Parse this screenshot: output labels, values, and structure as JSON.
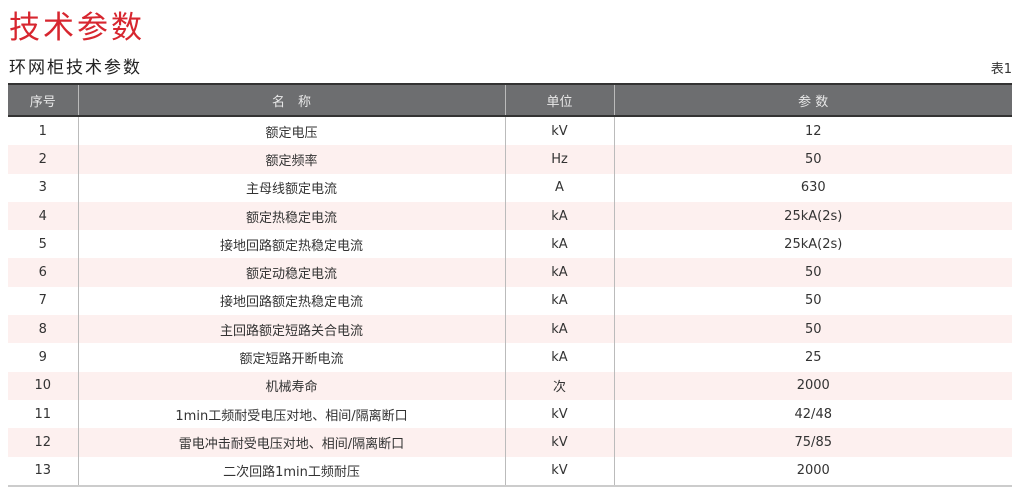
{
  "title": "技术参数",
  "subtitle": "环网柜技术参数",
  "table_no": "表1",
  "table": {
    "headers": [
      "序号",
      "名　称",
      "单位",
      "参 数"
    ],
    "rows": [
      [
        "1",
        "额定电压",
        "kV",
        "12"
      ],
      [
        "2",
        "额定频率",
        "Hz",
        "50"
      ],
      [
        "3",
        "主母线额定电流",
        "A",
        "630"
      ],
      [
        "4",
        "额定热稳定电流",
        "kA",
        "25kA(2s)"
      ],
      [
        "5",
        "接地回路额定热稳定电流",
        "kA",
        "25kA(2s)"
      ],
      [
        "6",
        "额定动稳定电流",
        "kA",
        "50"
      ],
      [
        "7",
        "接地回路额定热稳定电流",
        "kA",
        "50"
      ],
      [
        "8",
        "主回路额定短路关合电流",
        "kA",
        "50"
      ],
      [
        "9",
        "额定短路开断电流",
        "kA",
        "25"
      ],
      [
        "10",
        "机械寿命",
        "次",
        "2000"
      ],
      [
        "11",
        "1min工频耐受电压对地、相间/隔离断口",
        "kV",
        "42/48"
      ],
      [
        "12",
        "雷电冲击耐受电压对地、相间/隔离断口",
        "kV",
        "75/85"
      ],
      [
        "13",
        "二次回路1min工频耐压",
        "kV",
        "2000"
      ]
    ]
  },
  "colors": {
    "title": "#d7262f",
    "header_bg": "#6d6e70",
    "stripe": "#fdf0ef"
  }
}
